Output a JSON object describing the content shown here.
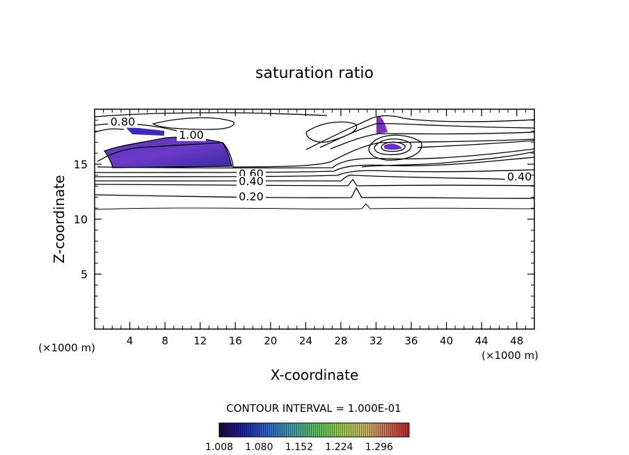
{
  "chart_data": {
    "type": "contour",
    "title": "saturation ratio",
    "xlabel": "X-coordinate",
    "ylabel": "Z-coordinate",
    "x_unit": "(×1000 m)",
    "xlim": [
      0,
      50
    ],
    "ylim": [
      0,
      20
    ],
    "x_ticks": [
      4,
      8,
      12,
      16,
      20,
      24,
      28,
      32,
      36,
      40,
      44,
      48
    ],
    "y_ticks": [
      5,
      10,
      15
    ],
    "contour_interval_text": "CONTOUR INTERVAL = 1.000E-01",
    "contour_labels": [
      {
        "text": "0.80",
        "x": 3.2,
        "z": 18.5
      },
      {
        "text": "1.00",
        "x": 11.0,
        "z": 17.3
      },
      {
        "text": "0.60",
        "x": 17.8,
        "z": 13.8
      },
      {
        "text": "0.40",
        "x": 17.8,
        "z": 13.1
      },
      {
        "text": "0.20",
        "x": 17.8,
        "z": 11.7
      },
      {
        "text": "0.40",
        "x": 48.3,
        "z": 13.5
      }
    ],
    "shaded_regions": [
      {
        "name": "supersaturated region 1",
        "x_range": [
          1.7,
          15.7
        ],
        "z_range": [
          14.6,
          17.5
        ]
      },
      {
        "name": "supersaturated region 2",
        "x_range": [
          3.5,
          7.8
        ],
        "z_range": [
          17.8,
          18.5
        ]
      },
      {
        "name": "supersaturated region 3",
        "x_range": [
          32.0,
          33.3
        ],
        "z_range": [
          17.6,
          19.3
        ]
      },
      {
        "name": "supersaturated region 4",
        "x_range": [
          33.2,
          35.2
        ],
        "z_range": [
          16.2,
          16.8
        ]
      }
    ],
    "colorbar": {
      "min": 1.008,
      "max": 1.35,
      "tick_labels": [
        "1.008",
        "1.080",
        "1.152",
        "1.224",
        "1.296"
      ],
      "colors": [
        "#1a0a33",
        "#1e1e9a",
        "#2e66c8",
        "#46a0a0",
        "#5ac058",
        "#a0c850",
        "#c8b064",
        "#c86050",
        "#b82828"
      ]
    },
    "grid": false,
    "legend": "colorbar-bottom"
  }
}
